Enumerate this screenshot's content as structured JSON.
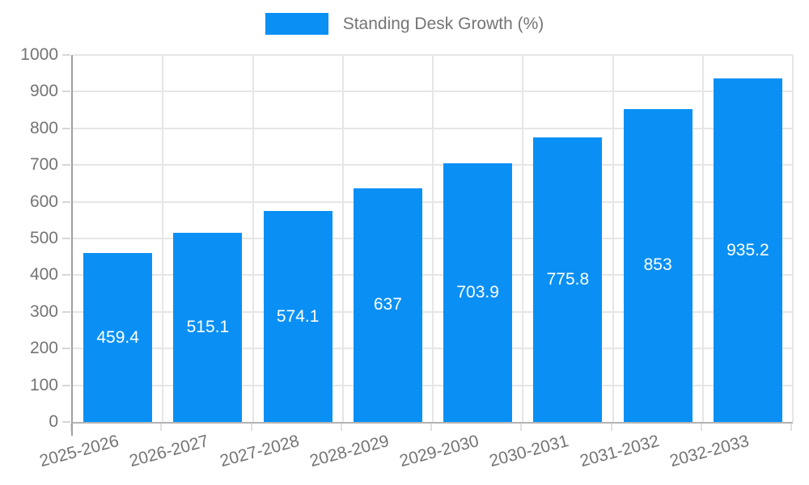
{
  "chart_data": {
    "type": "bar",
    "title": "",
    "xlabel": "",
    "ylabel": "",
    "categories": [
      "2025-2026",
      "2026-2027",
      "2027-2028",
      "2028-2029",
      "2029-2030",
      "2030-2031",
      "2031-2032",
      "2032-2033"
    ],
    "series": [
      {
        "name": "Standing Desk Growth (%)",
        "values": [
          459.4,
          515.1,
          574.1,
          637,
          703.9,
          775.8,
          853,
          935.2
        ],
        "value_labels": [
          "459.4",
          "515.1",
          "574.1",
          "637",
          "703.9",
          "775.8",
          "853",
          "935.2"
        ]
      }
    ],
    "ylim": [
      0,
      1000
    ],
    "y_tick_step": 100,
    "y_tick_labels": [
      "0",
      "100",
      "200",
      "300",
      "400",
      "500",
      "600",
      "700",
      "800",
      "900",
      "1000"
    ],
    "grid": true,
    "legend_position": "top",
    "x_label_rotation_deg": -15,
    "value_label_position": "center-inside"
  },
  "legend": {
    "label": "Standing Desk Growth (%)"
  },
  "colors": {
    "bar": "#0a90f5",
    "grid": "#e6e6e6",
    "axis": "#a0a0a0",
    "text": "#747474",
    "value_label": "#ffffff",
    "background": "#ffffff"
  }
}
